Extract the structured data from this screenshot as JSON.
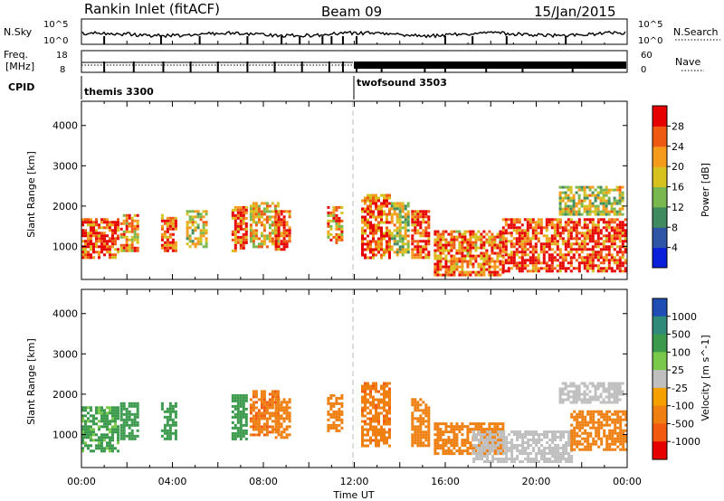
{
  "header": {
    "station": "Rankin Inlet (fitACF)",
    "beam": "Beam 09",
    "date": "15/Jan/2015"
  },
  "noise_panel": {
    "left_label": "N.Sky",
    "right_label": "N.Search",
    "left_ticks": [
      "10^5",
      "10^0"
    ],
    "right_ticks": [
      "10^5",
      "10^0"
    ]
  },
  "freq_panel": {
    "left_label_1": "Freq.",
    "left_label_2": "[MHz]",
    "right_label": "Nave",
    "left_ticks": [
      "18",
      "8"
    ],
    "right_ticks": [
      "60",
      "0"
    ]
  },
  "cpid": {
    "label": "CPID",
    "modes": [
      {
        "name": "themis 3300",
        "start_hour": 0
      },
      {
        "name": "twofsound 3503",
        "start_hour": 12
      }
    ]
  },
  "x_axis": {
    "label": "Time UT",
    "ticks": [
      "00:00",
      "04:00",
      "08:00",
      "12:00",
      "16:00",
      "20:00",
      "00:00"
    ]
  },
  "chart_data": [
    {
      "type": "heatmap",
      "panel": "power",
      "x": {
        "label": "Time UT",
        "range_hours": [
          0,
          24
        ]
      },
      "y": {
        "label": "Slant Range [km]",
        "range": [
          180,
          4600
        ],
        "ticks": [
          "1000",
          "2000",
          "3000",
          "4000"
        ]
      },
      "colorbar": {
        "label": "Power [dB]",
        "ticks": [
          "4",
          "8",
          "12",
          "16",
          "20",
          "24",
          "28"
        ],
        "colors": [
          "#0a1fd9",
          "#2e55a6",
          "#3f8a5f",
          "#79b84e",
          "#d6c21f",
          "#f59a1b",
          "#ef5a12",
          "#e60000"
        ]
      },
      "regions": [
        {
          "t0": 0.0,
          "t1": 1.6,
          "r0": 700,
          "r1": 1700,
          "value": 27
        },
        {
          "t0": 1.7,
          "t1": 2.5,
          "r0": 900,
          "r1": 1800,
          "value": 22
        },
        {
          "t0": 3.5,
          "t1": 4.2,
          "r0": 900,
          "r1": 1800,
          "value": 24
        },
        {
          "t0": 4.6,
          "t1": 5.5,
          "r0": 1000,
          "r1": 1900,
          "value": 18
        },
        {
          "t0": 6.6,
          "t1": 7.3,
          "r0": 900,
          "r1": 2000,
          "value": 26
        },
        {
          "t0": 7.4,
          "t1": 8.6,
          "r0": 1000,
          "r1": 2100,
          "value": 20
        },
        {
          "t0": 8.5,
          "t1": 9.2,
          "r0": 900,
          "r1": 1900,
          "value": 27
        },
        {
          "t0": 10.8,
          "t1": 11.5,
          "r0": 1100,
          "r1": 2000,
          "value": 22
        },
        {
          "t0": 12.3,
          "t1": 13.6,
          "r0": 700,
          "r1": 2300,
          "value": 26
        },
        {
          "t0": 13.6,
          "t1": 14.4,
          "r0": 800,
          "r1": 2100,
          "value": 17
        },
        {
          "t0": 14.5,
          "t1": 15.3,
          "r0": 700,
          "r1": 1900,
          "value": 27
        },
        {
          "t0": 15.5,
          "t1": 18.5,
          "r0": 300,
          "r1": 1400,
          "value": 25
        },
        {
          "t0": 18.5,
          "t1": 23.9,
          "r0": 400,
          "r1": 1700,
          "value": 28
        },
        {
          "t0": 21.0,
          "t1": 23.8,
          "r0": 1800,
          "r1": 2500,
          "value": 17
        }
      ]
    },
    {
      "type": "heatmap",
      "panel": "velocity",
      "x": {
        "label": "Time UT",
        "range_hours": [
          0,
          24
        ]
      },
      "y": {
        "label": "Slant Range [km]",
        "range": [
          180,
          4600
        ],
        "ticks": [
          "1000",
          "2000",
          "3000",
          "4000"
        ]
      },
      "colorbar": {
        "label": "Velocity [m s^-1]",
        "ticks": [
          "1000",
          "500",
          "100",
          "25",
          "-25",
          "-100",
          "-500",
          "-1000"
        ],
        "colors": [
          "#1f4fb5",
          "#2f8a7a",
          "#3c9a4d",
          "#7ac84a",
          "#bfbfbf",
          "#f5a000",
          "#ee7f10",
          "#f25a10",
          "#e60000"
        ]
      },
      "regions": [
        {
          "t0": 0.0,
          "t1": 1.6,
          "r0": 600,
          "r1": 1700,
          "value": 120
        },
        {
          "t0": 1.7,
          "t1": 2.5,
          "r0": 900,
          "r1": 1800,
          "value": 180
        },
        {
          "t0": 3.5,
          "t1": 4.2,
          "r0": 900,
          "r1": 1800,
          "value": 300
        },
        {
          "t0": 6.6,
          "t1": 7.3,
          "r0": 900,
          "r1": 2000,
          "value": 260
        },
        {
          "t0": 7.4,
          "t1": 8.6,
          "r0": 1000,
          "r1": 2100,
          "value": -450
        },
        {
          "t0": 8.5,
          "t1": 9.2,
          "r0": 900,
          "r1": 1900,
          "value": -200
        },
        {
          "t0": 10.8,
          "t1": 11.5,
          "r0": 1100,
          "r1": 2000,
          "value": -300
        },
        {
          "t0": 12.3,
          "t1": 13.6,
          "r0": 700,
          "r1": 2300,
          "value": -420
        },
        {
          "t0": 14.5,
          "t1": 15.3,
          "r0": 700,
          "r1": 1900,
          "value": -350
        },
        {
          "t0": 15.5,
          "t1": 18.5,
          "r0": 500,
          "r1": 1300,
          "value": -260
        },
        {
          "t0": 17.2,
          "t1": 21.5,
          "r0": 300,
          "r1": 1100,
          "value": -10
        },
        {
          "t0": 21.5,
          "t1": 23.9,
          "r0": 600,
          "r1": 1600,
          "value": -320
        },
        {
          "t0": 21.0,
          "t1": 23.8,
          "r0": 1800,
          "r1": 2300,
          "value": 5
        }
      ]
    }
  ]
}
